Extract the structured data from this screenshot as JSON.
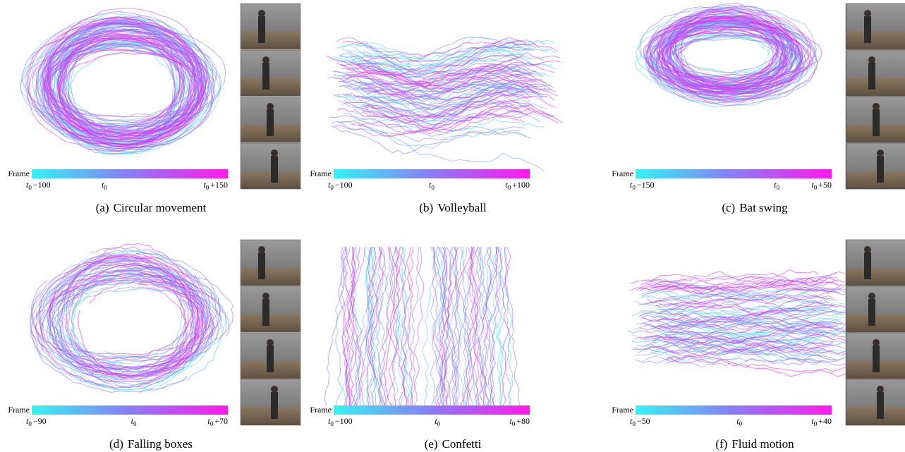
{
  "panels": [
    {
      "label": "(a)",
      "caption": "Circular movement",
      "colorbar": {
        "title": "Frame",
        "ticks": [
          {
            "base": "t",
            "sub": "0",
            "offset": "−100"
          },
          {
            "base": "t",
            "sub": "0"
          },
          {
            "base": "t",
            "sub": "0",
            "offset": "+150"
          }
        ]
      }
    },
    {
      "label": "(b)",
      "caption": "Volleyball",
      "colorbar": {
        "title": "Frame",
        "ticks": [
          {
            "base": "t",
            "sub": "0",
            "offset": "−100"
          },
          {
            "base": "t",
            "sub": "0"
          },
          {
            "base": "t",
            "sub": "0",
            "offset": "+100"
          }
        ]
      }
    },
    {
      "label": "(c)",
      "caption": "Bat swing",
      "colorbar": {
        "title": "Frame",
        "ticks": [
          {
            "base": "t",
            "sub": "0",
            "offset": "−150"
          },
          {
            "base": "t",
            "sub": "0"
          },
          {
            "base": "t",
            "sub": "0",
            "offset": "+50"
          }
        ]
      }
    },
    {
      "label": "(d)",
      "caption": "Falling boxes",
      "colorbar": {
        "title": "Frame",
        "ticks": [
          {
            "base": "t",
            "sub": "0",
            "offset": "−90"
          },
          {
            "base": "t",
            "sub": "0"
          },
          {
            "base": "t",
            "sub": "0",
            "offset": "+70"
          }
        ]
      }
    },
    {
      "label": "(e)",
      "caption": "Confetti",
      "colorbar": {
        "title": "Frame",
        "ticks": [
          {
            "base": "t",
            "sub": "0",
            "offset": "−100"
          },
          {
            "base": "t",
            "sub": "0"
          },
          {
            "base": "t",
            "sub": "0",
            "offset": "+80"
          }
        ]
      }
    },
    {
      "label": "(f)",
      "caption": "Fluid motion",
      "colorbar": {
        "title": "Frame",
        "ticks": [
          {
            "base": "t",
            "sub": "0",
            "offset": "−50"
          },
          {
            "base": "t",
            "sub": "0"
          },
          {
            "base": "t",
            "sub": "0",
            "offset": "+40"
          }
        ]
      }
    }
  ]
}
